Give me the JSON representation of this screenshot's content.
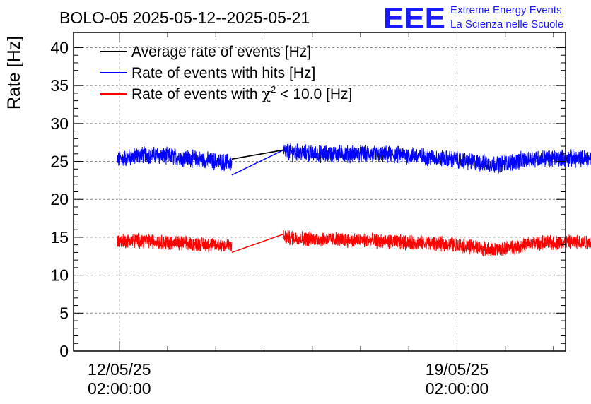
{
  "header": {
    "title": "BOLO-05 2025-05-12--2025-05-21",
    "logo_text": "EEE",
    "logo_line1": "Extreme Energy Events",
    "logo_line2": "La Scienza nelle Scuole"
  },
  "colors": {
    "average": "#000000",
    "hits": "#0000ff",
    "chi2": "#ff0000",
    "logo": "#1a1aff",
    "grid": "#888888"
  },
  "chart_data": {
    "type": "line",
    "title": "BOLO-05 2025-05-12--2025-05-21",
    "xlabel": "",
    "ylabel": "Rate [Hz]",
    "ylim": [
      0,
      42
    ],
    "yticks": [
      0,
      5,
      10,
      15,
      20,
      25,
      30,
      35,
      40
    ],
    "xlim_days": [
      -0.95,
      9.25
    ],
    "xticks": [
      {
        "day": 0,
        "line1": "12/05/25",
        "line2": "02:00:00"
      },
      {
        "day": 7,
        "line1": "19/05/25",
        "line2": "02:00:00"
      }
    ],
    "legend_position": "top-left",
    "grid": true,
    "gap": {
      "start_day": 2.33,
      "end_day": 3.4
    },
    "series": [
      {
        "name": "Average rate of events [Hz]",
        "color": "#000000",
        "points": [
          [
            2.33,
            25.3
          ],
          [
            3.4,
            26.5
          ]
        ]
      },
      {
        "name": "Rate of events with hits [Hz]",
        "color": "#0000ff",
        "noise": 1.0,
        "baseline": [
          [
            -0.05,
            25.2
          ],
          [
            0.5,
            25.9
          ],
          [
            1.2,
            25.6
          ],
          [
            2.0,
            25.0
          ],
          [
            2.33,
            24.8
          ],
          [
            3.4,
            26.3
          ],
          [
            4.0,
            26.0
          ],
          [
            5.0,
            26.0
          ],
          [
            6.0,
            25.8
          ],
          [
            7.0,
            25.2
          ],
          [
            7.8,
            24.6
          ],
          [
            8.2,
            25.0
          ],
          [
            8.6,
            25.4
          ],
          [
            9.8,
            25.4
          ]
        ],
        "gap_line": [
          [
            2.33,
            23.2
          ],
          [
            3.4,
            26.5
          ]
        ]
      },
      {
        "name": "Rate of events with χ² < 10.0 [Hz]",
        "color": "#ff0000",
        "noise": 0.85,
        "baseline": [
          [
            -0.05,
            14.5
          ],
          [
            0.5,
            14.6
          ],
          [
            1.2,
            14.2
          ],
          [
            2.0,
            14.0
          ],
          [
            2.33,
            13.9
          ],
          [
            3.4,
            15.0
          ],
          [
            4.0,
            14.8
          ],
          [
            5.0,
            14.6
          ],
          [
            6.0,
            14.3
          ],
          [
            7.0,
            14.0
          ],
          [
            7.8,
            13.3
          ],
          [
            8.2,
            13.8
          ],
          [
            8.6,
            14.2
          ],
          [
            9.8,
            14.4
          ]
        ],
        "gap_line": [
          [
            2.33,
            13.0
          ],
          [
            3.4,
            15.4
          ]
        ]
      }
    ],
    "data_x_range": [
      -0.05,
      9.8
    ]
  },
  "legend": {
    "items": [
      {
        "text": "Average rate of events [Hz]"
      },
      {
        "text": "Rate of events with hits [Hz]"
      },
      {
        "text_prefix": "Rate of events with ",
        "symbol": "χ",
        "sup": "2",
        "text_suffix": " < 10.0 [Hz]"
      }
    ]
  }
}
